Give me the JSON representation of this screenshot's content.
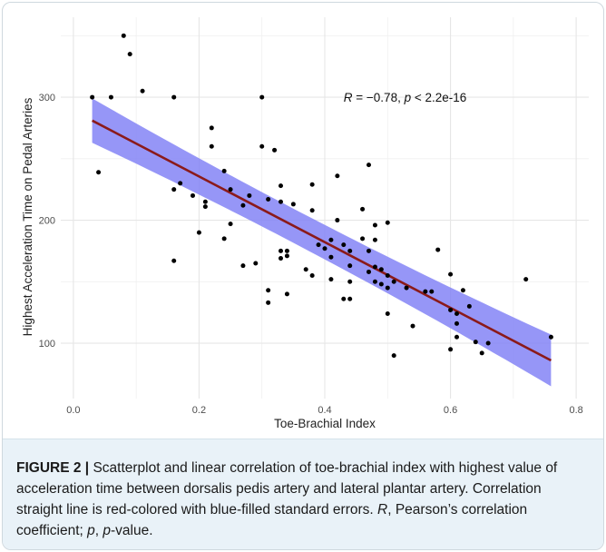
{
  "chart_data": {
    "type": "scatter",
    "xlabel": "Toe-Brachial Index",
    "ylabel": "Highest Acceleration Time on Pedal Arteries",
    "xlim": [
      -0.02,
      0.82
    ],
    "ylim": [
      55,
      365
    ],
    "xticks": [
      0.0,
      0.2,
      0.4,
      0.6,
      0.8
    ],
    "xtick_labels": [
      "0.0",
      "0.2",
      "0.4",
      "0.6",
      "0.8"
    ],
    "yticks": [
      100,
      200,
      300
    ],
    "ytick_labels": [
      "100",
      "200",
      "300"
    ],
    "grid": true,
    "annotation": {
      "R_part": "R",
      "R_value": " = −0.78, ",
      "p_part": "p",
      "p_value": " < 2.2e-16",
      "x": 0.43,
      "y": 300
    },
    "regression": {
      "x0": 0.03,
      "y0": 281,
      "x1": 0.76,
      "y1": 86,
      "band_half_low": [
        18,
        14,
        21
      ],
      "line_color": "#8b1a1a",
      "band_color": "#7f7ff5"
    },
    "point_color": "#000000",
    "points": [
      [
        0.03,
        300
      ],
      [
        0.04,
        239
      ],
      [
        0.06,
        300
      ],
      [
        0.08,
        350
      ],
      [
        0.09,
        335
      ],
      [
        0.11,
        305
      ],
      [
        0.16,
        300
      ],
      [
        0.16,
        225
      ],
      [
        0.16,
        167
      ],
      [
        0.17,
        230
      ],
      [
        0.19,
        220
      ],
      [
        0.2,
        190
      ],
      [
        0.21,
        215
      ],
      [
        0.21,
        211
      ],
      [
        0.22,
        275
      ],
      [
        0.22,
        260
      ],
      [
        0.24,
        240
      ],
      [
        0.24,
        185
      ],
      [
        0.25,
        225
      ],
      [
        0.25,
        197
      ],
      [
        0.27,
        212
      ],
      [
        0.27,
        163
      ],
      [
        0.28,
        220
      ],
      [
        0.29,
        165
      ],
      [
        0.3,
        300
      ],
      [
        0.3,
        260
      ],
      [
        0.31,
        217
      ],
      [
        0.31,
        143
      ],
      [
        0.31,
        133
      ],
      [
        0.32,
        257
      ],
      [
        0.33,
        228
      ],
      [
        0.33,
        215
      ],
      [
        0.33,
        175
      ],
      [
        0.33,
        169
      ],
      [
        0.34,
        175
      ],
      [
        0.34,
        171
      ],
      [
        0.34,
        140
      ],
      [
        0.35,
        213
      ],
      [
        0.37,
        160
      ],
      [
        0.38,
        229
      ],
      [
        0.38,
        208
      ],
      [
        0.38,
        155
      ],
      [
        0.39,
        180
      ],
      [
        0.4,
        177
      ],
      [
        0.41,
        184
      ],
      [
        0.41,
        170
      ],
      [
        0.41,
        152
      ],
      [
        0.42,
        236
      ],
      [
        0.42,
        200
      ],
      [
        0.43,
        180
      ],
      [
        0.43,
        136
      ],
      [
        0.44,
        175
      ],
      [
        0.44,
        163
      ],
      [
        0.44,
        150
      ],
      [
        0.44,
        136
      ],
      [
        0.46,
        209
      ],
      [
        0.46,
        185
      ],
      [
        0.47,
        245
      ],
      [
        0.47,
        175
      ],
      [
        0.47,
        158
      ],
      [
        0.48,
        196
      ],
      [
        0.48,
        184
      ],
      [
        0.48,
        162
      ],
      [
        0.48,
        150
      ],
      [
        0.49,
        160
      ],
      [
        0.49,
        148
      ],
      [
        0.5,
        198
      ],
      [
        0.5,
        155
      ],
      [
        0.5,
        145
      ],
      [
        0.5,
        124
      ],
      [
        0.51,
        150
      ],
      [
        0.51,
        90
      ],
      [
        0.53,
        145
      ],
      [
        0.54,
        114
      ],
      [
        0.56,
        142
      ],
      [
        0.57,
        142
      ],
      [
        0.58,
        176
      ],
      [
        0.6,
        156
      ],
      [
        0.6,
        127
      ],
      [
        0.6,
        95
      ],
      [
        0.61,
        124
      ],
      [
        0.61,
        116
      ],
      [
        0.61,
        105
      ],
      [
        0.62,
        143
      ],
      [
        0.63,
        130
      ],
      [
        0.64,
        101
      ],
      [
        0.65,
        92
      ],
      [
        0.66,
        100
      ],
      [
        0.72,
        152
      ],
      [
        0.76,
        105
      ]
    ]
  },
  "caption": {
    "fig_label": "FIGURE 2 |",
    "text_1": " Scatterplot and linear correlation of toe-brachial index with highest value of acceleration time between dorsalis pedis artery and lateral plantar artery. Correlation straight line is red-colored with blue-filled standard errors. ",
    "R": "R",
    "text_2": ", Pearson’s correlation coefficient; ",
    "p": "p",
    "text_3": ", ",
    "p2": "p",
    "text_4": "-value."
  }
}
